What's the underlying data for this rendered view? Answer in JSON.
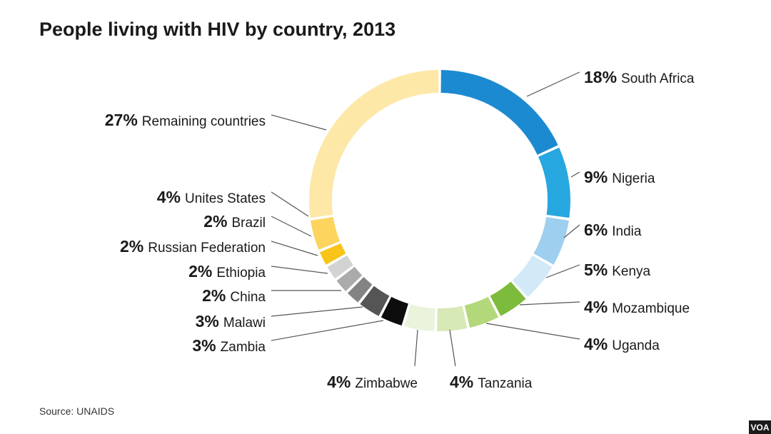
{
  "chart_data": {
    "type": "donut",
    "title": "People living with HIV by country, 2013",
    "slices": [
      {
        "label": "South Africa",
        "percent_label": "18%",
        "value": 18,
        "color": "#1c8ad0"
      },
      {
        "label": "Nigeria",
        "percent_label": "9%",
        "value": 9,
        "color": "#27a7e0"
      },
      {
        "label": "India",
        "percent_label": "6%",
        "value": 6,
        "color": "#9fcfee"
      },
      {
        "label": "Kenya",
        "percent_label": "5%",
        "value": 5,
        "color": "#d2e9f8"
      },
      {
        "label": "Mozambique",
        "percent_label": "4%",
        "value": 4,
        "color": "#7dbb3c"
      },
      {
        "label": "Uganda",
        "percent_label": "4%",
        "value": 4,
        "color": "#b3d77b"
      },
      {
        "label": "Tanzania",
        "percent_label": "4%",
        "value": 4,
        "color": "#d7e9b5"
      },
      {
        "label": "Zimbabwe",
        "percent_label": "4%",
        "value": 4,
        "color": "#eaf3dc"
      },
      {
        "label": "Zambia",
        "percent_label": "3%",
        "value": 3,
        "color": "#0d0d0d"
      },
      {
        "label": "Malawi",
        "percent_label": "3%",
        "value": 3,
        "color": "#555555"
      },
      {
        "label": "China",
        "percent_label": "2%",
        "value": 2,
        "color": "#838383"
      },
      {
        "label": "Ethiopia",
        "percent_label": "2%",
        "value": 2,
        "color": "#ababab"
      },
      {
        "label": "Russian Federation",
        "percent_label": "2%",
        "value": 2,
        "color": "#d3d3d3"
      },
      {
        "label": "Brazil",
        "percent_label": "2%",
        "value": 2,
        "color": "#f8c41a"
      },
      {
        "label": "Unites States",
        "percent_label": "4%",
        "value": 4,
        "color": "#fcd45e"
      },
      {
        "label": "Remaining countries",
        "percent_label": "27%",
        "value": 27,
        "color": "#fde8a8"
      }
    ]
  },
  "source": "Source: UNAIDS",
  "badge": "VOA"
}
